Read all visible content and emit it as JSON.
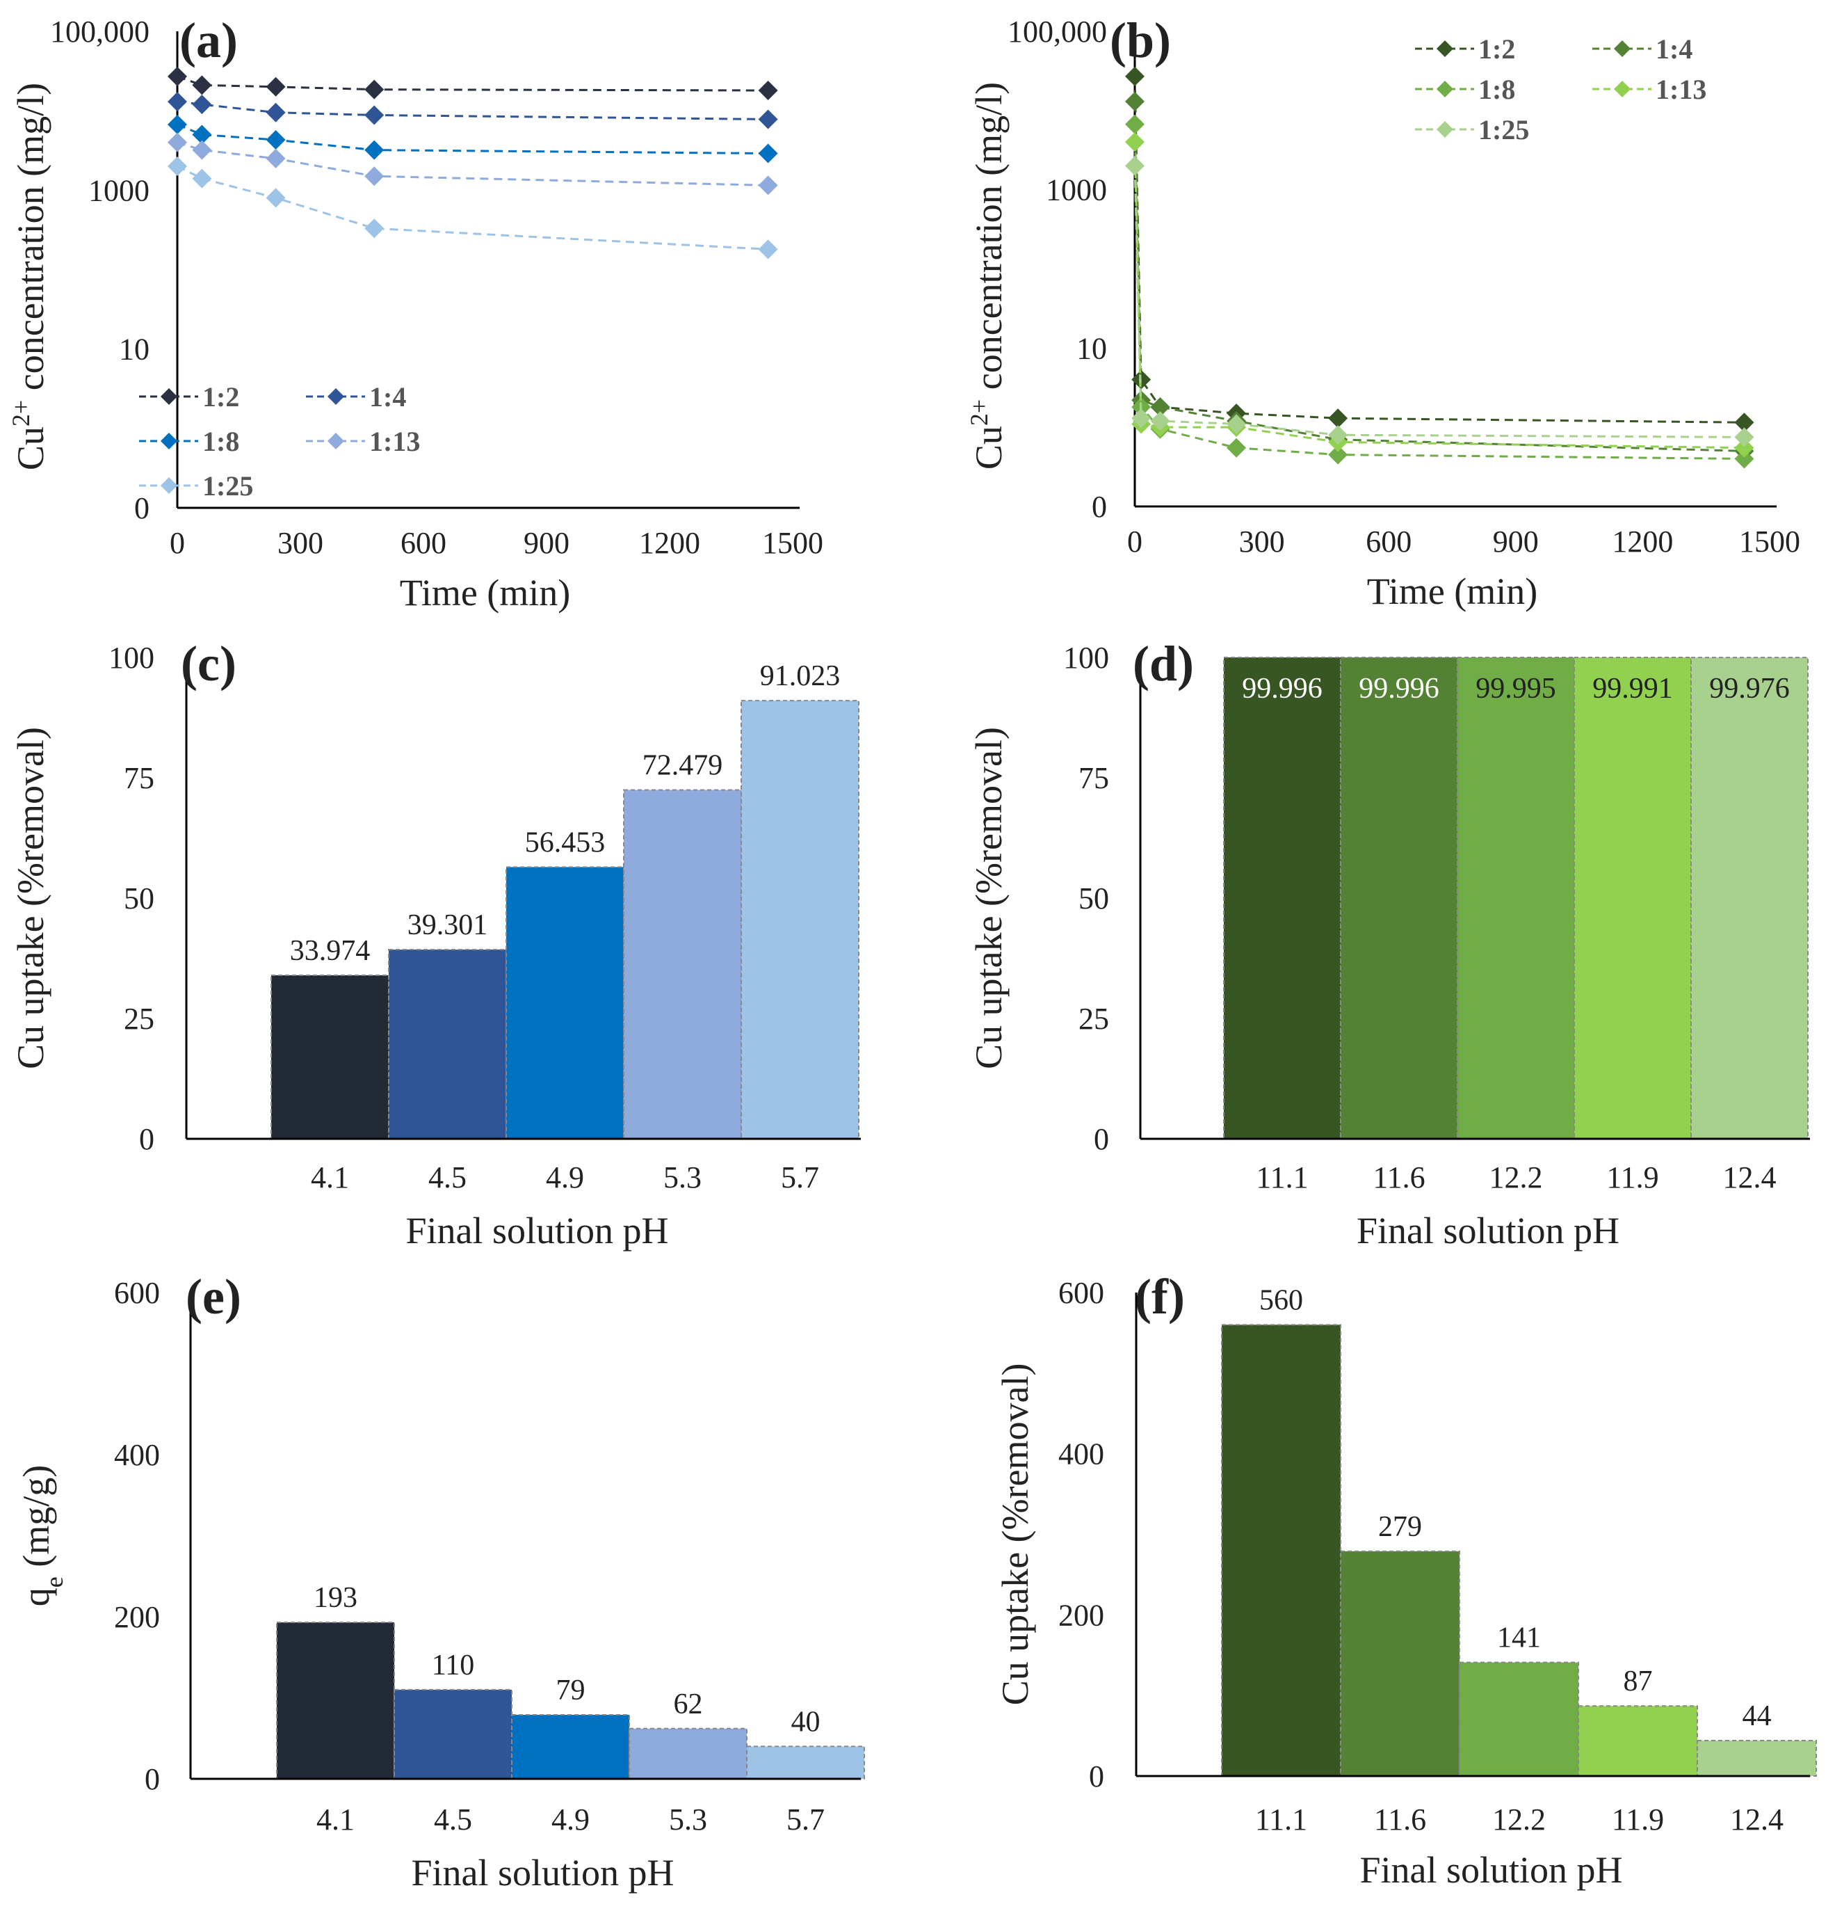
{
  "chart_data": [
    {
      "id": "a",
      "panel_label": "(a)",
      "type": "line",
      "scale": "log",
      "xlabel": "Time (min)",
      "ylabel": "Cu2+ concentration (mg/l)",
      "ylabel_parts": [
        "Cu",
        "2+",
        " concentration (mg/l)"
      ],
      "xlim": [
        0,
        1500
      ],
      "x_ticks": [
        0,
        300,
        600,
        900,
        1200,
        1500
      ],
      "x_tick_labels": [
        "0",
        "300",
        "600",
        "900",
        "1200",
        "1500"
      ],
      "y_tick_labels": [
        "100,000",
        "1000",
        "10",
        "0"
      ],
      "x": [
        0,
        60,
        240,
        480,
        1440
      ],
      "legend_position": "bottom-left",
      "series": [
        {
          "name": "1:2",
          "color": "#2a3142",
          "values": [
            27000,
            21000,
            20000,
            18500,
            18000
          ]
        },
        {
          "name": "1:4",
          "color": "#2f5597",
          "values": [
            13000,
            12000,
            9500,
            8800,
            7800
          ]
        },
        {
          "name": "1:8",
          "color": "#0070c0",
          "values": [
            6700,
            5000,
            4300,
            3200,
            2900
          ]
        },
        {
          "name": "1:13",
          "color": "#8faadc",
          "values": [
            4000,
            3200,
            2500,
            1500,
            1150
          ]
        },
        {
          "name": "1:25",
          "color": "#9dc3e6",
          "values": [
            2000,
            1400,
            800,
            330,
            180
          ]
        }
      ]
    },
    {
      "id": "b",
      "panel_label": "(b)",
      "type": "line",
      "scale": "log",
      "xlabel": "Time (min)",
      "ylabel": "Cu2+ concentration (mg/l)",
      "ylabel_parts": [
        "Cu",
        "2+",
        " concentration (mg/l)"
      ],
      "xlim": [
        0,
        1500
      ],
      "x_ticks": [
        0,
        300,
        600,
        900,
        1200,
        1500
      ],
      "x_tick_labels": [
        "0",
        "300",
        "600",
        "900",
        "1200",
        "1500"
      ],
      "y_tick_labels": [
        "100,000",
        "1000",
        "10",
        "0"
      ],
      "x": [
        0,
        15,
        60,
        240,
        480,
        1440
      ],
      "legend_position": "top-right",
      "series": [
        {
          "name": "1:2",
          "color": "#375623",
          "values": [
            27000,
            4.0,
            1.8,
            1.5,
            1.3,
            1.15
          ]
        },
        {
          "name": "1:4",
          "color": "#548235",
          "values": [
            13000,
            2.2,
            1.8,
            1.2,
            0.7,
            0.5
          ]
        },
        {
          "name": "1:8",
          "color": "#70ad47",
          "values": [
            6700,
            1.8,
            0.95,
            0.55,
            0.45,
            0.4
          ]
        },
        {
          "name": "1:13",
          "color": "#92d050",
          "values": [
            4000,
            1.1,
            1.0,
            1.0,
            0.65,
            0.55
          ]
        },
        {
          "name": "1:25",
          "color": "#a9d18e",
          "values": [
            2000,
            1.3,
            1.2,
            1.1,
            0.8,
            0.75
          ]
        }
      ]
    },
    {
      "id": "c",
      "panel_label": "(c)",
      "type": "bar",
      "xlabel": "Final solution pH",
      "ylabel": "Cu uptake (%removal)",
      "ylim": [
        0,
        100
      ],
      "y_ticks": [
        0,
        25,
        50,
        75,
        100
      ],
      "categories": [
        "4.1",
        "4.5",
        "4.9",
        "5.3",
        "5.7"
      ],
      "values": [
        33.974,
        39.301,
        56.453,
        72.479,
        91.023
      ],
      "value_labels": [
        "33.974",
        "39.301",
        "56.453",
        "72.479",
        "91.023"
      ],
      "colors": [
        "#222a35",
        "#2f5597",
        "#0070c0",
        "#8faadc",
        "#9dc3e6"
      ],
      "labels_inside": false
    },
    {
      "id": "d",
      "panel_label": "(d)",
      "type": "bar",
      "xlabel": "Final solution pH",
      "ylabel": "Cu uptake (%removal)",
      "ylim": [
        0,
        100
      ],
      "y_ticks": [
        0,
        25,
        50,
        75,
        100
      ],
      "categories": [
        "11.1",
        "11.6",
        "12.2",
        "11.9",
        "12.4"
      ],
      "values": [
        99.996,
        99.996,
        99.995,
        99.991,
        99.976
      ],
      "value_labels": [
        "99.996",
        "99.996",
        "99.995",
        "99.991",
        "99.976"
      ],
      "colors": [
        "#375623",
        "#548235",
        "#70ad47",
        "#92d050",
        "#a9d18e"
      ],
      "labels_inside": true,
      "label_colors": [
        "#ffffff",
        "#ffffff",
        "#222222",
        "#222222",
        "#222222"
      ]
    },
    {
      "id": "e",
      "panel_label": "(e)",
      "type": "bar",
      "xlabel": "Final solution pH",
      "ylabel": "qe (mg/g)",
      "ylabel_parts": [
        "q",
        "e",
        " (mg/g)"
      ],
      "ylim": [
        0,
        600
      ],
      "y_ticks": [
        0,
        200,
        400,
        600
      ],
      "categories": [
        "4.1",
        "4.5",
        "4.9",
        "5.3",
        "5.7"
      ],
      "values": [
        193,
        110,
        79,
        62,
        40
      ],
      "value_labels": [
        "193",
        "110",
        "79",
        "62",
        "40"
      ],
      "colors": [
        "#222a35",
        "#2f5597",
        "#0070c0",
        "#8faadc",
        "#9dc3e6"
      ],
      "labels_inside": false
    },
    {
      "id": "f",
      "panel_label": "(f)",
      "type": "bar",
      "xlabel": "Final solution pH",
      "ylabel": "Cu uptake (%removal)",
      "ylim": [
        0,
        600
      ],
      "y_ticks": [
        0,
        200,
        400,
        600
      ],
      "categories": [
        "11.1",
        "11.6",
        "12.2",
        "11.9",
        "12.4"
      ],
      "values": [
        560,
        279,
        141,
        87,
        44
      ],
      "value_labels": [
        "560",
        "279",
        "141",
        "87",
        "44"
      ],
      "colors": [
        "#375623",
        "#548235",
        "#70ad47",
        "#92d050",
        "#a9d18e"
      ],
      "labels_inside": false
    }
  ]
}
